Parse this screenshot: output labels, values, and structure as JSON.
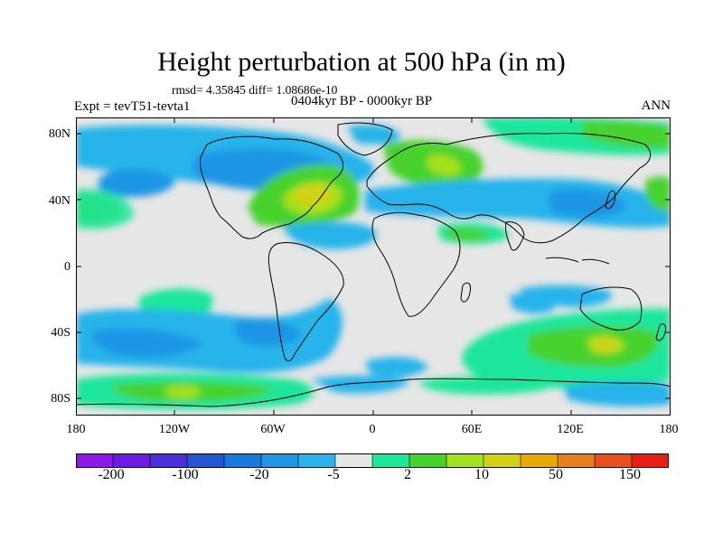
{
  "header": {
    "title": "Height perturbation at 500 hPa (in m)",
    "stats": "rmsd= 4.35845 diff= 1.08686e-10",
    "experiment": "Expt = tevT51-tevta1",
    "period": "0404kyr BP - 0000kyr BP",
    "season": "ANN"
  },
  "map": {
    "projection": "cylindrical equidistant",
    "background_color": "#e6e6e6",
    "y_axis_labels": [
      "80N",
      "40N",
      "0",
      "40S",
      "80S"
    ],
    "x_axis_labels": [
      "180",
      "120W",
      "60W",
      "0",
      "60E",
      "120E",
      "180"
    ],
    "regions": [
      {
        "level": "-5",
        "area": "North Pacific / Siberia high latitudes"
      },
      {
        "level": "-20",
        "area": "North America / Canada"
      },
      {
        "level": "10",
        "area": "North Atlantic"
      },
      {
        "level": "50",
        "area": "North Atlantic centre"
      },
      {
        "level": "-20",
        "area": "North-west Pacific / Japan"
      },
      {
        "level": "10",
        "area": "Europe / Scandinavia"
      },
      {
        "level": "-5",
        "area": "South Pacific"
      },
      {
        "level": "-20",
        "area": "South Pacific west of South America"
      },
      {
        "level": "10",
        "area": "Southern Indian Ocean / Australia"
      },
      {
        "level": "50",
        "area": "South of Australia"
      },
      {
        "level": "10",
        "area": "Antarctic coast Pacific sector"
      }
    ]
  },
  "colorbar": {
    "colors": [
      "#8c1ae6",
      "#6e1be1",
      "#4d2fd6",
      "#2456d2",
      "#1878dc",
      "#1e96e4",
      "#28b4ea",
      "#e6e6e6",
      "#1ee69b",
      "#46d22d",
      "#a5e11e",
      "#d2d214",
      "#e6aa00",
      "#e6821e",
      "#e6501e",
      "#e61e14"
    ],
    "labels": [
      "-200",
      "-100",
      "-20",
      "-5",
      "2",
      "10",
      "50",
      "150"
    ]
  }
}
